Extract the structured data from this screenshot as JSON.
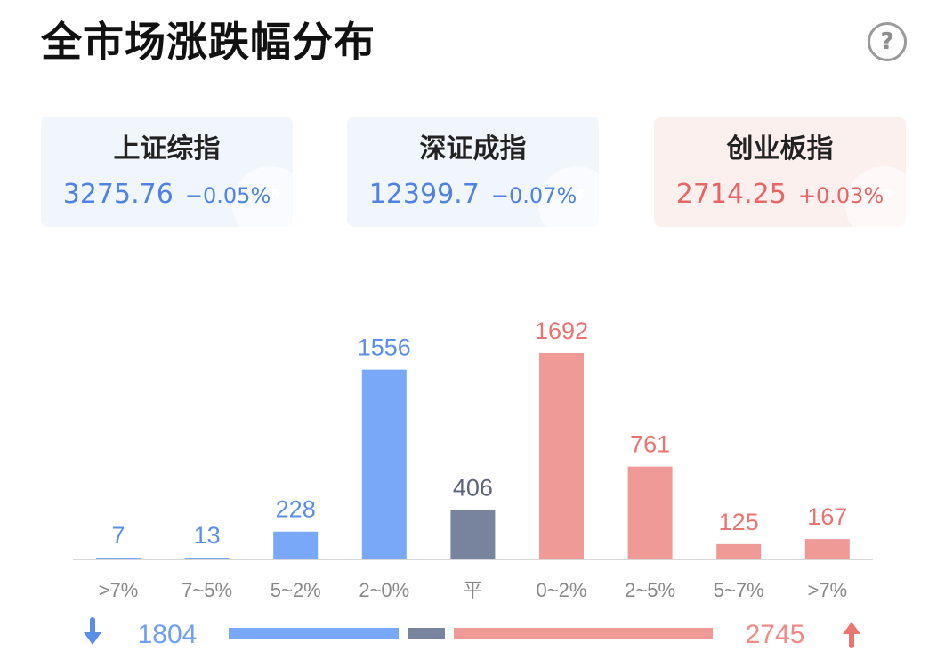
{
  "header": {
    "title": "全市场涨跌幅分布",
    "help_icon_label": "?"
  },
  "indices": [
    {
      "name": "上证综指",
      "value": "3275.76",
      "change": "−0.05%",
      "trend": "down"
    },
    {
      "name": "深证成指",
      "value": "12399.7",
      "change": "−0.07%",
      "trend": "down"
    },
    {
      "name": "创业板指",
      "value": "2714.25",
      "change": "+0.03%",
      "trend": "up"
    }
  ],
  "colors": {
    "down": "#78a8f7",
    "flat": "#78849e",
    "up": "#ef9a96",
    "down_text": "#5b8ee8",
    "up_text": "#ea7470",
    "flat_text": "#5b6478",
    "axis": "#d7d7d7",
    "tick_text": "#888888"
  },
  "chart_data": {
    "type": "bar",
    "categories": [
      ">7%",
      "7~5%",
      "5~2%",
      "2~0%",
      "平",
      "0~2%",
      "2~5%",
      "5~7%",
      ">7%"
    ],
    "values": [
      7,
      13,
      228,
      1556,
      406,
      1692,
      761,
      125,
      167
    ],
    "groups": [
      "down",
      "down",
      "down",
      "down",
      "flat",
      "up",
      "up",
      "up",
      "up"
    ],
    "ylim": [
      0,
      1692
    ],
    "grid": false,
    "legend": "none"
  },
  "summary": {
    "down_count": "1804",
    "up_count": "2745",
    "down_icon": "down-arrow-icon",
    "up_icon": "up-arrow-icon"
  }
}
